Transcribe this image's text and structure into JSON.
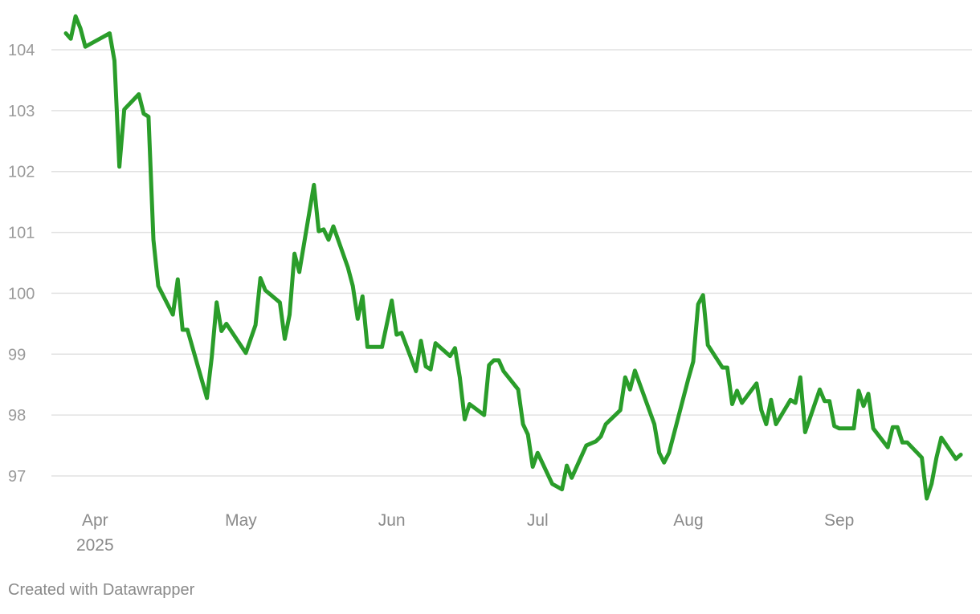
{
  "chart_data": {
    "type": "line",
    "y_ticks": [
      97,
      98,
      99,
      100,
      101,
      102,
      103,
      104
    ],
    "ylim": [
      96.5,
      104.6
    ],
    "x_axis": {
      "start": "2025-03-26",
      "end": "2025-09-25",
      "ticks": [
        {
          "date": "2025-04-01",
          "label": "Apr",
          "sublabel": "2025"
        },
        {
          "date": "2025-05-01",
          "label": "May",
          "sublabel": ""
        },
        {
          "date": "2025-06-01",
          "label": "Jun",
          "sublabel": ""
        },
        {
          "date": "2025-07-01",
          "label": "Jul",
          "sublabel": ""
        },
        {
          "date": "2025-08-01",
          "label": "Aug",
          "sublabel": ""
        },
        {
          "date": "2025-09-01",
          "label": "Sep",
          "sublabel": ""
        }
      ]
    },
    "grid": "horizontal",
    "series": [
      {
        "color": "#2a9d2a",
        "points": [
          [
            "2025-03-26",
            104.27
          ],
          [
            "2025-03-27",
            104.18
          ],
          [
            "2025-03-28",
            104.55
          ],
          [
            "2025-03-29",
            104.35
          ],
          [
            "2025-03-30",
            104.05
          ],
          [
            "2025-04-04",
            104.27
          ],
          [
            "2025-04-05",
            103.82
          ],
          [
            "2025-04-06",
            102.08
          ],
          [
            "2025-04-07",
            103.02
          ],
          [
            "2025-04-10",
            103.27
          ],
          [
            "2025-04-11",
            102.95
          ],
          [
            "2025-04-12",
            102.9
          ],
          [
            "2025-04-13",
            100.88
          ],
          [
            "2025-04-14",
            100.12
          ],
          [
            "2025-04-17",
            99.65
          ],
          [
            "2025-04-18",
            100.23
          ],
          [
            "2025-04-19",
            99.4
          ],
          [
            "2025-04-20",
            99.4
          ],
          [
            "2025-04-24",
            98.28
          ],
          [
            "2025-04-25",
            98.95
          ],
          [
            "2025-04-26",
            99.85
          ],
          [
            "2025-04-27",
            99.38
          ],
          [
            "2025-04-28",
            99.5
          ],
          [
            "2025-05-02",
            99.02
          ],
          [
            "2025-05-04",
            99.48
          ],
          [
            "2025-05-05",
            100.25
          ],
          [
            "2025-05-06",
            100.05
          ],
          [
            "2025-05-09",
            99.85
          ],
          [
            "2025-05-10",
            99.25
          ],
          [
            "2025-05-11",
            99.65
          ],
          [
            "2025-05-12",
            100.65
          ],
          [
            "2025-05-13",
            100.35
          ],
          [
            "2025-05-16",
            101.78
          ],
          [
            "2025-05-17",
            101.02
          ],
          [
            "2025-05-18",
            101.05
          ],
          [
            "2025-05-19",
            100.88
          ],
          [
            "2025-05-20",
            101.1
          ],
          [
            "2025-05-23",
            100.42
          ],
          [
            "2025-05-24",
            100.12
          ],
          [
            "2025-05-25",
            99.58
          ],
          [
            "2025-05-26",
            99.95
          ],
          [
            "2025-05-27",
            99.12
          ],
          [
            "2025-05-30",
            99.12
          ],
          [
            "2025-06-01",
            99.88
          ],
          [
            "2025-06-02",
            99.32
          ],
          [
            "2025-06-03",
            99.35
          ],
          [
            "2025-06-06",
            98.72
          ],
          [
            "2025-06-07",
            99.22
          ],
          [
            "2025-06-08",
            98.8
          ],
          [
            "2025-06-09",
            98.75
          ],
          [
            "2025-06-10",
            99.18
          ],
          [
            "2025-06-13",
            98.97
          ],
          [
            "2025-06-14",
            99.1
          ],
          [
            "2025-06-15",
            98.62
          ],
          [
            "2025-06-16",
            97.93
          ],
          [
            "2025-06-17",
            98.18
          ],
          [
            "2025-06-20",
            98.0
          ],
          [
            "2025-06-21",
            98.82
          ],
          [
            "2025-06-22",
            98.9
          ],
          [
            "2025-06-23",
            98.9
          ],
          [
            "2025-06-24",
            98.72
          ],
          [
            "2025-06-27",
            98.42
          ],
          [
            "2025-06-28",
            97.85
          ],
          [
            "2025-06-29",
            97.68
          ],
          [
            "2025-06-30",
            97.15
          ],
          [
            "2025-07-01",
            97.38
          ],
          [
            "2025-07-04",
            96.87
          ],
          [
            "2025-07-06",
            96.78
          ],
          [
            "2025-07-07",
            97.17
          ],
          [
            "2025-07-08",
            96.97
          ],
          [
            "2025-07-11",
            97.5
          ],
          [
            "2025-07-13",
            97.57
          ],
          [
            "2025-07-14",
            97.65
          ],
          [
            "2025-07-15",
            97.85
          ],
          [
            "2025-07-18",
            98.08
          ],
          [
            "2025-07-19",
            98.62
          ],
          [
            "2025-07-20",
            98.42
          ],
          [
            "2025-07-21",
            98.73
          ],
          [
            "2025-07-25",
            97.85
          ],
          [
            "2025-07-26",
            97.38
          ],
          [
            "2025-07-27",
            97.22
          ],
          [
            "2025-07-28",
            97.38
          ],
          [
            "2025-07-29",
            97.68
          ],
          [
            "2025-08-01",
            98.6
          ],
          [
            "2025-08-02",
            98.88
          ],
          [
            "2025-08-03",
            99.82
          ],
          [
            "2025-08-04",
            99.97
          ],
          [
            "2025-08-05",
            99.15
          ],
          [
            "2025-08-08",
            98.78
          ],
          [
            "2025-08-09",
            98.78
          ],
          [
            "2025-08-10",
            98.18
          ],
          [
            "2025-08-11",
            98.4
          ],
          [
            "2025-08-12",
            98.2
          ],
          [
            "2025-08-15",
            98.52
          ],
          [
            "2025-08-16",
            98.08
          ],
          [
            "2025-08-17",
            97.85
          ],
          [
            "2025-08-18",
            98.25
          ],
          [
            "2025-08-19",
            97.85
          ],
          [
            "2025-08-22",
            98.25
          ],
          [
            "2025-08-23",
            98.2
          ],
          [
            "2025-08-24",
            98.62
          ],
          [
            "2025-08-25",
            97.72
          ],
          [
            "2025-08-28",
            98.42
          ],
          [
            "2025-08-29",
            98.23
          ],
          [
            "2025-08-30",
            98.23
          ],
          [
            "2025-08-31",
            97.82
          ],
          [
            "2025-09-01",
            97.78
          ],
          [
            "2025-09-04",
            97.78
          ],
          [
            "2025-09-05",
            98.4
          ],
          [
            "2025-09-06",
            98.15
          ],
          [
            "2025-09-07",
            98.35
          ],
          [
            "2025-09-08",
            97.78
          ],
          [
            "2025-09-11",
            97.47
          ],
          [
            "2025-09-12",
            97.8
          ],
          [
            "2025-09-13",
            97.8
          ],
          [
            "2025-09-14",
            97.55
          ],
          [
            "2025-09-15",
            97.55
          ],
          [
            "2025-09-18",
            97.3
          ],
          [
            "2025-09-19",
            96.63
          ],
          [
            "2025-09-20",
            96.87
          ],
          [
            "2025-09-21",
            97.3
          ],
          [
            "2025-09-22",
            97.63
          ],
          [
            "2025-09-25",
            97.28
          ],
          [
            "2025-09-26",
            97.35
          ]
        ]
      }
    ]
  },
  "footer": {
    "credit": "Created with Datawrapper"
  }
}
